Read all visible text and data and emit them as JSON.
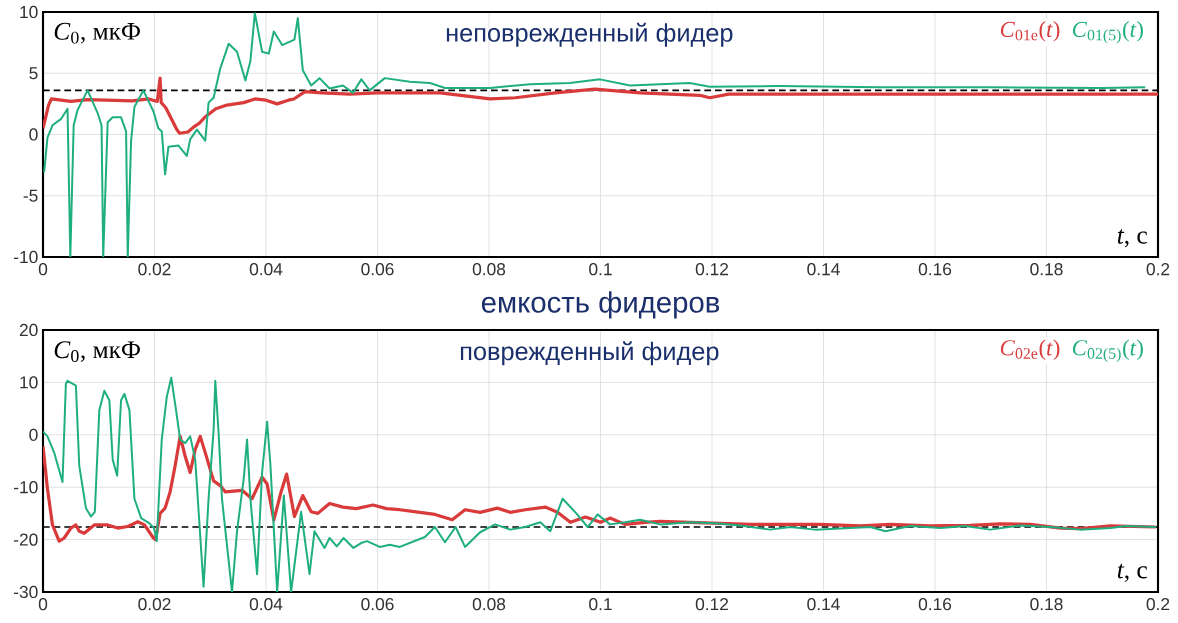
{
  "chart_data": [
    {
      "type": "line",
      "subtitle": "неповрежденный фидер",
      "ylabel": "*C*$_{0}$, мкФ",
      "xlabel": "*t*, с",
      "xlim": [
        0,
        0.2
      ],
      "ylim": [
        -10,
        10
      ],
      "xticks": [
        0,
        0.02,
        0.04,
        0.06,
        0.08,
        0.1,
        0.12,
        0.14,
        0.16,
        0.18,
        0.2
      ],
      "yticks": [
        -10,
        -5,
        0,
        5,
        10
      ],
      "grid": true,
      "legend": "top right",
      "ref_lines": [
        {
          "axis": "y",
          "value": 3.6,
          "color": "#000000",
          "line_style": "dashed"
        }
      ],
      "series": [
        {
          "name": "*C*$_{01e}$(*t*)",
          "color": "#d93a3a",
          "x": [
            0,
            0.001,
            0.0015,
            0.005,
            0.008,
            0.012,
            0.016,
            0.019,
            0.0205,
            0.021,
            0.0212,
            0.022,
            0.023,
            0.024,
            0.0245,
            0.026,
            0.027,
            0.028,
            0.029,
            0.031,
            0.033,
            0.036,
            0.038,
            0.04,
            0.042,
            0.044,
            0.045,
            0.047,
            0.05,
            0.055,
            0.06,
            0.0712,
            0.0802,
            0.0847,
            0.0919,
            0.099,
            0.1071,
            0.1178,
            0.1196,
            0.123,
            0.14,
            0.16,
            0.18,
            0.2
          ],
          "values": [
            0.5,
            2.4,
            2.9,
            2.7,
            2.85,
            2.8,
            2.75,
            2.9,
            2.7,
            4.6,
            2.6,
            2.2,
            1.3,
            0.4,
            0.1,
            0.2,
            0.6,
            0.9,
            1.4,
            2.1,
            2.4,
            2.6,
            2.9,
            2.8,
            2.5,
            2.8,
            2.9,
            3.5,
            3.4,
            3.3,
            3.4,
            3.4,
            2.9,
            3.0,
            3.4,
            3.7,
            3.4,
            3.2,
            3.0,
            3.3,
            3.3,
            3.3,
            3.3,
            3.3
          ]
        },
        {
          "name": "*C*$_{01(5)}$(*t*)",
          "color": "#1fae80",
          "x": [
            0.0002,
            0.0008,
            0.0017,
            0.0032,
            0.0044,
            0.0049,
            0.0055,
            0.0062,
            0.008,
            0.0098,
            0.0105,
            0.0108,
            0.0116,
            0.0125,
            0.014,
            0.0149,
            0.0152,
            0.0158,
            0.0164,
            0.018,
            0.0198,
            0.0207,
            0.0213,
            0.0219,
            0.0225,
            0.0243,
            0.0258,
            0.0264,
            0.0276,
            0.0291,
            0.0297,
            0.0306,
            0.0318,
            0.0333,
            0.0348,
            0.0363,
            0.0372,
            0.038,
            0.0393,
            0.0405,
            0.0414,
            0.0429,
            0.0451,
            0.0457,
            0.0466,
            0.0481,
            0.0496,
            0.0514,
            0.0538,
            0.0556,
            0.0571,
            0.0586,
            0.0613,
            0.0658,
            0.0694,
            0.0721,
            0.0802,
            0.0874,
            0.0945,
            0.0999,
            0.1053,
            0.116,
            0.1196,
            0.132,
            0.15,
            0.17,
            0.19,
            0.1977
          ],
          "values": [
            -3.1,
            -0.25,
            0.75,
            1.25,
            2.1,
            -10,
            0.75,
            2.0,
            3.6,
            1.75,
            0.75,
            -10,
            1.0,
            1.4,
            1.4,
            0.25,
            -10,
            -0.5,
            2.25,
            3.6,
            1.9,
            0.5,
            0.25,
            -3.25,
            -1,
            -0.9,
            -1.75,
            -0.4,
            0.4,
            -0.5,
            2.6,
            3.0,
            5.4,
            7.4,
            6.75,
            4.4,
            6.0,
            9.9,
            6.75,
            6.6,
            8.4,
            7.3,
            7.75,
            9.5,
            5.25,
            4.0,
            4.6,
            3.75,
            4.0,
            3.4,
            4.5,
            3.6,
            4.6,
            4.3,
            4.2,
            3.8,
            3.8,
            4.1,
            4.2,
            4.5,
            4.0,
            4.2,
            3.9,
            3.95,
            3.85,
            3.85,
            3.8,
            3.85
          ]
        }
      ]
    },
    {
      "type": "line",
      "title": "емкость фидеров",
      "subtitle": "поврежденный фидер",
      "ylabel": "*C*$_{0}$, мкФ",
      "xlabel": "*t*, с",
      "xlim": [
        0,
        0.2
      ],
      "ylim": [
        -30,
        20
      ],
      "xticks": [
        0,
        0.02,
        0.04,
        0.06,
        0.08,
        0.1,
        0.12,
        0.14,
        0.16,
        0.18,
        0.2
      ],
      "yticks": [
        -30,
        -20,
        -10,
        0,
        10,
        20
      ],
      "grid": true,
      "legend": "top right",
      "ref_lines": [
        {
          "axis": "y",
          "value": -17.6,
          "color": "#000000",
          "line_style": "dashed"
        }
      ],
      "series": [
        {
          "name": "*C*$_{02e}$(*t*)",
          "color": "#d93a3a",
          "x": [
            0,
            0.0008,
            0.0017,
            0.0029,
            0.0038,
            0.005,
            0.0059,
            0.0065,
            0.0074,
            0.0092,
            0.0116,
            0.0134,
            0.0152,
            0.017,
            0.0182,
            0.0198,
            0.0202,
            0.021,
            0.0219,
            0.0228,
            0.0237,
            0.0246,
            0.0255,
            0.0264,
            0.0273,
            0.0282,
            0.0291,
            0.0306,
            0.0318,
            0.0327,
            0.0357,
            0.0375,
            0.0393,
            0.0402,
            0.0414,
            0.0427,
            0.0437,
            0.0451,
            0.0466,
            0.0481,
            0.0493,
            0.0514,
            0.0538,
            0.0562,
            0.0592,
            0.0616,
            0.064,
            0.0676,
            0.0703,
            0.0734,
            0.0757,
            0.0784,
            0.0815,
            0.0838,
            0.0865,
            0.0901,
            0.0923,
            0.0946,
            0.0973,
            0.1,
            0.1017,
            0.1044,
            0.108,
            0.1107,
            0.1161,
            0.1215,
            0.1269,
            0.1322,
            0.1394,
            0.1466,
            0.152,
            0.1591,
            0.1663,
            0.1717,
            0.1771,
            0.1825,
            0.1861,
            0.1915,
            0.1996
          ],
          "values": [
            -2.2,
            -10.3,
            -17.2,
            -20.3,
            -19.7,
            -17.8,
            -17.2,
            -18.4,
            -18.8,
            -17.2,
            -17.2,
            -17.8,
            -17.5,
            -16.6,
            -17.2,
            -19.7,
            -20,
            -15,
            -14,
            -10.9,
            -5.9,
            -0.3,
            -4.1,
            -7.2,
            -2.8,
            -0.3,
            -3.4,
            -8.8,
            -9.7,
            -10.9,
            -10.6,
            -12.2,
            -8.1,
            -9.4,
            -16.3,
            -10.9,
            -7.5,
            -15.6,
            -11.6,
            -14.7,
            -15,
            -13.1,
            -13.8,
            -14.1,
            -13.4,
            -14.1,
            -14.3,
            -14.8,
            -15.2,
            -16.2,
            -14.3,
            -14.8,
            -14,
            -14.8,
            -14.3,
            -13.8,
            -14.8,
            -16.7,
            -15.7,
            -16.7,
            -15.9,
            -17.1,
            -16.7,
            -16.5,
            -16.7,
            -16.9,
            -17.1,
            -17.1,
            -17.1,
            -17.4,
            -17.1,
            -17.4,
            -17.3,
            -17,
            -17.1,
            -17.8,
            -17.9,
            -17.4,
            -17.6
          ]
        },
        {
          "name": "*C*$_{02(5)}$(*t*)",
          "color": "#1fae80",
          "x": [
            0,
            0.0008,
            0.002,
            0.0035,
            0.0041,
            0.0044,
            0.0059,
            0.0065,
            0.0077,
            0.0086,
            0.0093,
            0.0101,
            0.011,
            0.0119,
            0.0125,
            0.0133,
            0.014,
            0.0146,
            0.0155,
            0.0164,
            0.0176,
            0.0191,
            0.0199,
            0.0204,
            0.0213,
            0.0222,
            0.023,
            0.0237,
            0.0246,
            0.0255,
            0.0264,
            0.0273,
            0.0288,
            0.0297,
            0.0306,
            0.0309,
            0.0315,
            0.0321,
            0.0339,
            0.0348,
            0.036,
            0.0366,
            0.0372,
            0.0384,
            0.0393,
            0.0402,
            0.0408,
            0.042,
            0.0432,
            0.0445,
            0.0463,
            0.0478,
            0.0487,
            0.0505,
            0.0514,
            0.0527,
            0.0539,
            0.0557,
            0.0572,
            0.0581,
            0.0604,
            0.0622,
            0.064,
            0.0685,
            0.0703,
            0.0721,
            0.074,
            0.0757,
            0.0784,
            0.0811,
            0.0838,
            0.0865,
            0.0892,
            0.091,
            0.0932,
            0.0955,
            0.0977,
            0.0995,
            0.1017,
            0.1044,
            0.1071,
            0.1107,
            0.1161,
            0.1206,
            0.125,
            0.1304,
            0.134,
            0.1385,
            0.143,
            0.1484,
            0.1511,
            0.1556,
            0.161,
            0.1654,
            0.1699,
            0.1753,
            0.1807,
            0.1861,
            0.1915,
            0.1942,
            0.1996
          ],
          "values": [
            0.6,
            -0.3,
            -3.4,
            -9,
            9.7,
            10.3,
            9.4,
            -5.9,
            -14,
            -15.6,
            -14.7,
            4.7,
            8.4,
            6.6,
            -4.7,
            -7.8,
            6.6,
            7.8,
            4.7,
            -12.2,
            -15.9,
            -16.9,
            -17.8,
            -20.3,
            -0.9,
            7.2,
            10.9,
            5.9,
            -0.9,
            -1.6,
            -0.3,
            -4.7,
            -29,
            -12.2,
            0.9,
            10.3,
            0.3,
            -12.2,
            -30,
            -18.4,
            -8.4,
            -0.9,
            -12.2,
            -26.6,
            -7.2,
            2.5,
            -5.9,
            -30,
            -11.6,
            -30,
            -14.7,
            -26.6,
            -18.4,
            -21.6,
            -19.7,
            -21.3,
            -19.7,
            -21.6,
            -20.6,
            -20.3,
            -21.4,
            -21,
            -21.4,
            -19.5,
            -17.6,
            -20.5,
            -17.6,
            -21.4,
            -18.6,
            -17.1,
            -18.1,
            -17.6,
            -16.7,
            -18.4,
            -12.2,
            -14.8,
            -17.6,
            -15.2,
            -17.1,
            -16.7,
            -16.2,
            -17.1,
            -16.7,
            -16.9,
            -17.3,
            -18.1,
            -17.6,
            -18.1,
            -17.9,
            -17.6,
            -18.4,
            -17.4,
            -17.8,
            -17.4,
            -18.1,
            -17.3,
            -17.6,
            -18.1,
            -17.8,
            -17.4,
            -17.6
          ]
        }
      ]
    }
  ]
}
